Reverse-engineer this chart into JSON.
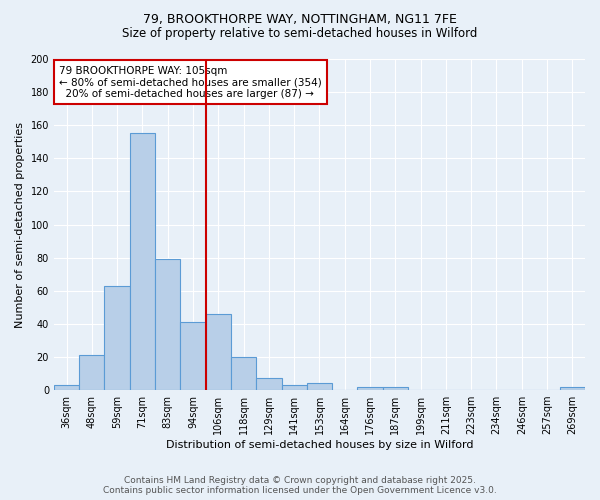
{
  "title_line1": "79, BROOKTHORPE WAY, NOTTINGHAM, NG11 7FE",
  "title_line2": "Size of property relative to semi-detached houses in Wilford",
  "xlabel": "Distribution of semi-detached houses by size in Wilford",
  "ylabel": "Number of semi-detached properties",
  "categories": [
    "36sqm",
    "48sqm",
    "59sqm",
    "71sqm",
    "83sqm",
    "94sqm",
    "106sqm",
    "118sqm",
    "129sqm",
    "141sqm",
    "153sqm",
    "164sqm",
    "176sqm",
    "187sqm",
    "199sqm",
    "211sqm",
    "223sqm",
    "234sqm",
    "246sqm",
    "257sqm",
    "269sqm"
  ],
  "values": [
    3,
    21,
    63,
    155,
    79,
    41,
    46,
    20,
    7,
    3,
    4,
    0,
    2,
    2,
    0,
    0,
    0,
    0,
    0,
    0,
    2
  ],
  "bar_color": "#b8cfe8",
  "bar_edge_color": "#5b9bd5",
  "vline_x": 5.5,
  "vline_color": "#cc0000",
  "annotation_text": "79 BROOKTHORPE WAY: 105sqm\n← 80% of semi-detached houses are smaller (354)\n  20% of semi-detached houses are larger (87) →",
  "annotation_box_color": "#cc0000",
  "ylim": [
    0,
    200
  ],
  "yticks": [
    0,
    20,
    40,
    60,
    80,
    100,
    120,
    140,
    160,
    180,
    200
  ],
  "background_color": "#e8f0f8",
  "plot_bg_color": "#e8f0f8",
  "footer_line1": "Contains HM Land Registry data © Crown copyright and database right 2025.",
  "footer_line2": "Contains public sector information licensed under the Open Government Licence v3.0.",
  "title_fontsize": 9,
  "subtitle_fontsize": 8.5,
  "xlabel_fontsize": 8,
  "ylabel_fontsize": 8,
  "tick_fontsize": 7,
  "footer_fontsize": 6.5,
  "annot_fontsize": 7.5
}
